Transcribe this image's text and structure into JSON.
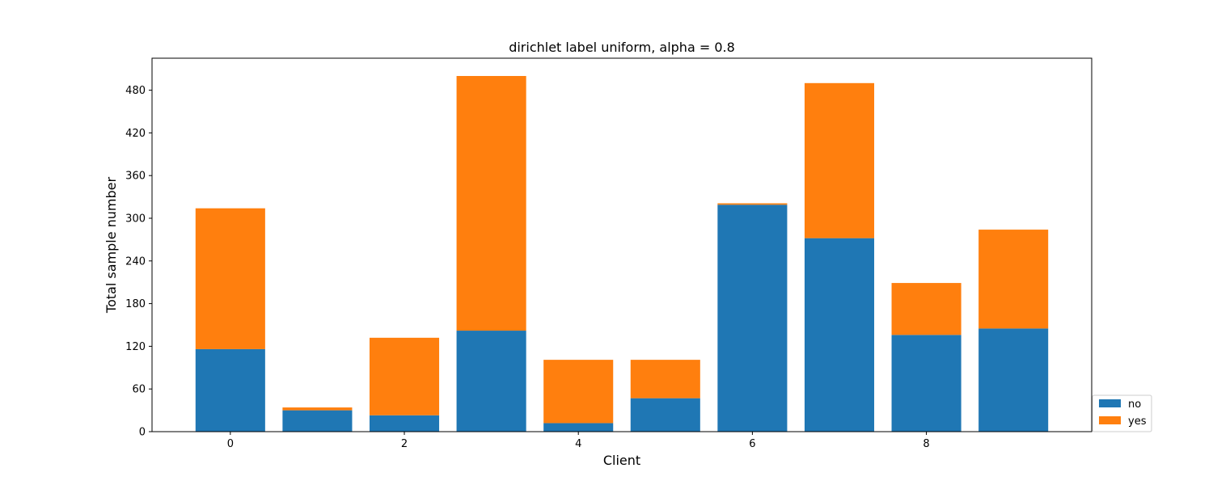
{
  "chart_data": {
    "type": "bar",
    "stacked": true,
    "title": "dirichlet label uniform, alpha = 0.8",
    "xlabel": "Client",
    "ylabel": "Total sample number",
    "categories": [
      0,
      1,
      2,
      3,
      4,
      5,
      6,
      7,
      8,
      9
    ],
    "x_ticks": [
      0,
      2,
      4,
      6,
      8
    ],
    "y_ticks": [
      0,
      60,
      120,
      180,
      240,
      300,
      360,
      420,
      480
    ],
    "xlim": [
      -0.9,
      9.9
    ],
    "ylim": [
      0,
      525
    ],
    "series": [
      {
        "name": "no",
        "color": "#1f77b4",
        "values": [
          116,
          30,
          23,
          142,
          12,
          47,
          319,
          272,
          136,
          145
        ]
      },
      {
        "name": "yes",
        "color": "#ff7f0e",
        "values": [
          198,
          4,
          109,
          358,
          89,
          54,
          2,
          218,
          73,
          139
        ]
      }
    ],
    "legend": {
      "placement": "bottom-right-outside"
    }
  }
}
